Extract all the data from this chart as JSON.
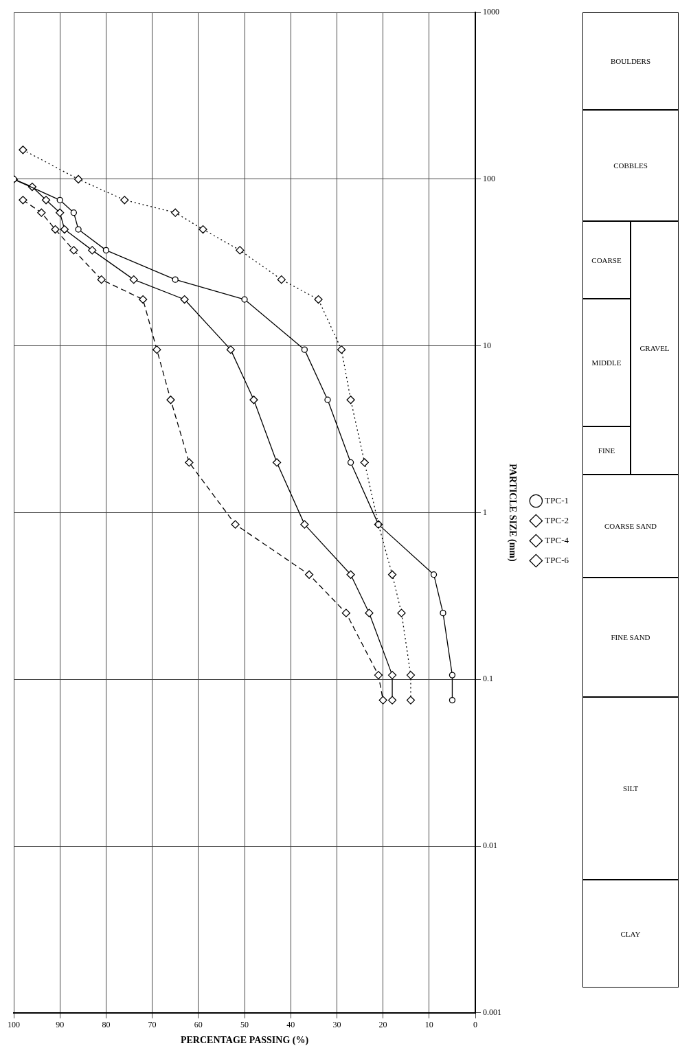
{
  "chart_data": {
    "type": "line",
    "xlabel": "PERCENTAGE PASSING (%)",
    "ylabel": "PARTICLE SIZE (mm)",
    "xlim": [
      100,
      0
    ],
    "xticks": [
      100,
      90,
      80,
      70,
      60,
      50,
      40,
      30,
      20,
      10,
      0
    ],
    "ylim": [
      0.001,
      1000
    ],
    "yticks": [
      0.001,
      0.01,
      0.1,
      1,
      10,
      100,
      1000
    ],
    "log": "y",
    "grid": true,
    "legend": "right",
    "series": [
      {
        "name": "TPC-1",
        "color": "#000000",
        "marker": "circle",
        "line_style": "solid",
        "x": [
          100,
          90,
          87,
          86,
          80,
          65,
          50,
          37,
          32,
          27,
          21,
          9,
          7,
          5,
          5
        ],
        "values": [
          100,
          75,
          63,
          50,
          37.5,
          25,
          19,
          9.5,
          4.75,
          2,
          0.85,
          0.425,
          0.25,
          0.106,
          0.075
        ]
      },
      {
        "name": "TPC-2",
        "color": "#000000",
        "marker": "diamond",
        "line_style": "dashed",
        "x": [
          98,
          94,
          91,
          87,
          81,
          72,
          69,
          66,
          62,
          52,
          36,
          28,
          21,
          20
        ],
        "values": [
          75,
          63,
          50,
          37.5,
          25,
          19,
          9.5,
          4.75,
          2,
          0.85,
          0.425,
          0.25,
          0.106,
          0.075
        ]
      },
      {
        "name": "TPC-4",
        "color": "#000000",
        "marker": "diamond",
        "line_style": "dotted",
        "x": [
          98,
          86,
          76,
          65,
          59,
          51,
          42,
          34,
          29,
          27,
          24,
          21,
          18,
          16,
          14,
          14
        ],
        "values": [
          150,
          100,
          75,
          63,
          50,
          37.5,
          25,
          19,
          9.5,
          4.75,
          2,
          0.85,
          0.425,
          0.25,
          0.106,
          0.075
        ]
      },
      {
        "name": "TPC-6",
        "color": "#000000",
        "marker": "diamond",
        "line_style": "solid",
        "x": [
          100,
          96,
          93,
          90,
          89,
          83,
          74,
          63,
          53,
          48,
          43,
          37,
          27,
          23,
          18,
          18
        ],
        "values": [
          100,
          90,
          75,
          63,
          50,
          37.5,
          25,
          19,
          9.5,
          4.75,
          2,
          0.85,
          0.425,
          0.25,
          0.106,
          0.075
        ]
      }
    ],
    "annotations": [
      "CLAY",
      "SILT",
      "FINE SAND",
      "COARSE SAND",
      "FINE",
      "MIDDLE",
      "COARSE",
      "GRAVEL",
      "COBBLES",
      "BOULDERS"
    ]
  }
}
